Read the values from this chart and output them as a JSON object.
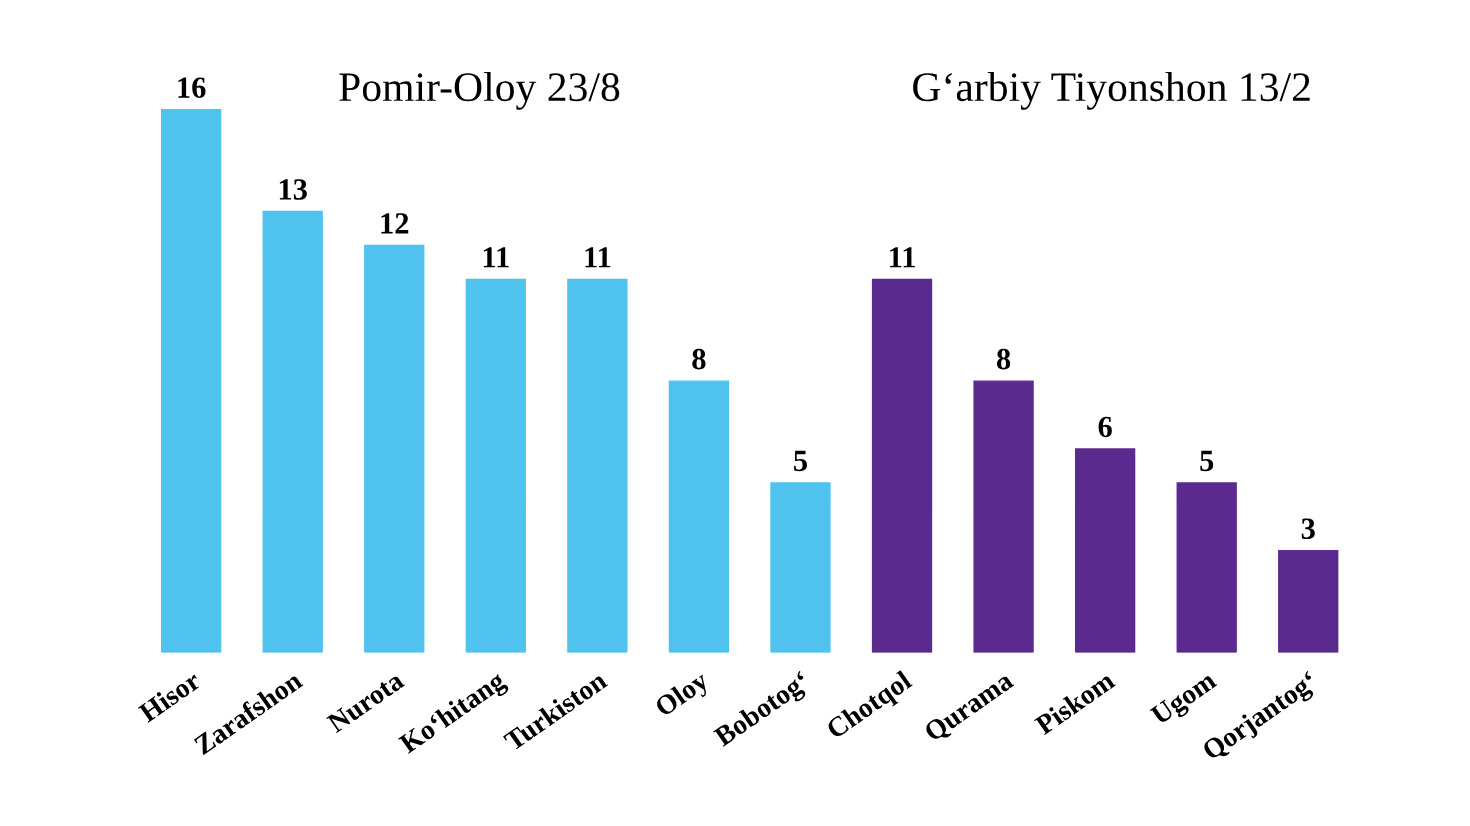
{
  "chart_data": {
    "type": "bar",
    "categories": [
      "Hisor",
      "Zarafshon",
      "Nurota",
      "Ko‘hitang",
      "Turkiston",
      "Oloy",
      "Bobotog‘",
      "Chotqol",
      "Qurama",
      "Piskom",
      "Ugom",
      "Qorjantog‘"
    ],
    "values": [
      16,
      13,
      12,
      11,
      11,
      8,
      5,
      11,
      8,
      6,
      5,
      3
    ],
    "colors": [
      "#4fc3ee",
      "#4fc3ee",
      "#4fc3ee",
      "#4fc3ee",
      "#4fc3ee",
      "#4fc3ee",
      "#4fc3ee",
      "#5b2a8e",
      "#5b2a8e",
      "#5b2a8e",
      "#5b2a8e",
      "#5b2a8e"
    ],
    "data_labels": true,
    "annotations": [
      "Pomir-Oloy 23/8",
      "G‘arbiy Tiyonshon 13/2"
    ]
  }
}
